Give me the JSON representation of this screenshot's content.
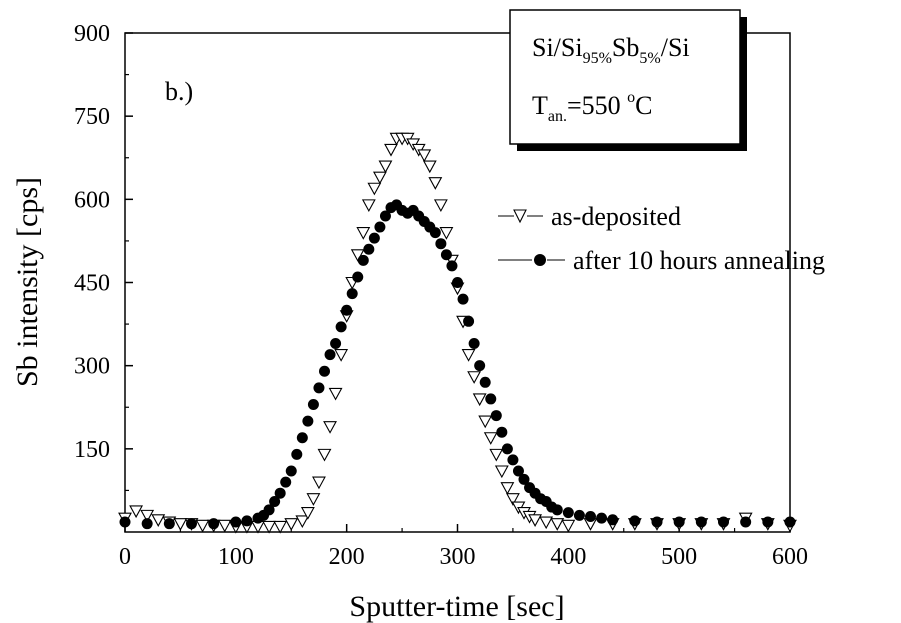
{
  "chart_data": {
    "type": "scatter",
    "panel_label": "b.)",
    "xlabel": "Sputter-time [sec]",
    "ylabel": "Sb intensity [cps]",
    "xlim": [
      0,
      600
    ],
    "ylim": [
      0,
      900
    ],
    "x_ticks": [
      "0",
      "100",
      "200",
      "300",
      "400",
      "500",
      "600"
    ],
    "y_ticks": [
      "150",
      "300",
      "450",
      "600",
      "750",
      "900"
    ],
    "grid": false,
    "legend_position": "right",
    "info_box": {
      "line1": {
        "a": "Si/Si",
        "sub1": "95%",
        "b": "Sb",
        "sub2": "5%",
        "c": "/Si"
      },
      "line2": {
        "a": "T",
        "sub": "an.",
        "b": "=550 ",
        "sup": "o",
        "c": "C"
      }
    },
    "series": [
      {
        "name": "as-deposited",
        "marker": "open-down-triangle",
        "x": [
          0,
          10,
          20,
          30,
          40,
          50,
          60,
          70,
          80,
          90,
          100,
          110,
          120,
          130,
          140,
          150,
          160,
          165,
          170,
          175,
          180,
          185,
          190,
          195,
          200,
          205,
          210,
          215,
          220,
          225,
          230,
          235,
          240,
          245,
          250,
          255,
          260,
          265,
          270,
          275,
          280,
          285,
          290,
          295,
          300,
          305,
          310,
          315,
          320,
          325,
          330,
          335,
          340,
          345,
          350,
          355,
          360,
          365,
          370,
          380,
          390,
          400,
          420,
          440,
          460,
          480,
          500,
          520,
          540,
          560,
          580,
          600
        ],
        "y": [
          25,
          38,
          30,
          22,
          18,
          15,
          15,
          12,
          12,
          12,
          10,
          10,
          10,
          10,
          10,
          15,
          20,
          35,
          60,
          90,
          140,
          190,
          250,
          320,
          390,
          450,
          500,
          540,
          590,
          620,
          640,
          660,
          690,
          710,
          710,
          710,
          700,
          690,
          680,
          660,
          630,
          590,
          540,
          490,
          440,
          380,
          320,
          280,
          240,
          200,
          170,
          140,
          110,
          80,
          60,
          45,
          35,
          28,
          22,
          18,
          15,
          12,
          15,
          15,
          15,
          15,
          15,
          15,
          15,
          25,
          15,
          12
        ]
      },
      {
        "name": "after 10 hours annealing",
        "marker": "filled-circle",
        "x": [
          0,
          20,
          40,
          60,
          80,
          100,
          110,
          120,
          125,
          130,
          135,
          140,
          145,
          150,
          155,
          160,
          165,
          170,
          175,
          180,
          185,
          190,
          195,
          200,
          205,
          210,
          215,
          220,
          225,
          230,
          235,
          240,
          245,
          250,
          255,
          260,
          265,
          270,
          275,
          280,
          285,
          290,
          295,
          300,
          305,
          310,
          315,
          320,
          325,
          330,
          335,
          340,
          345,
          350,
          355,
          360,
          365,
          370,
          375,
          380,
          385,
          390,
          400,
          410,
          420,
          430,
          440,
          460,
          480,
          500,
          520,
          540,
          560,
          580,
          600
        ],
        "y": [
          18,
          15,
          15,
          15,
          15,
          18,
          20,
          25,
          30,
          40,
          55,
          70,
          90,
          110,
          140,
          170,
          200,
          230,
          260,
          290,
          320,
          340,
          370,
          400,
          430,
          460,
          490,
          510,
          530,
          550,
          570,
          585,
          590,
          580,
          575,
          580,
          570,
          560,
          550,
          540,
          520,
          500,
          480,
          450,
          420,
          380,
          340,
          300,
          270,
          240,
          210,
          180,
          150,
          130,
          110,
          95,
          80,
          70,
          60,
          55,
          45,
          40,
          35,
          30,
          28,
          25,
          22,
          20,
          18,
          18,
          18,
          18,
          18,
          18,
          18
        ]
      }
    ]
  }
}
